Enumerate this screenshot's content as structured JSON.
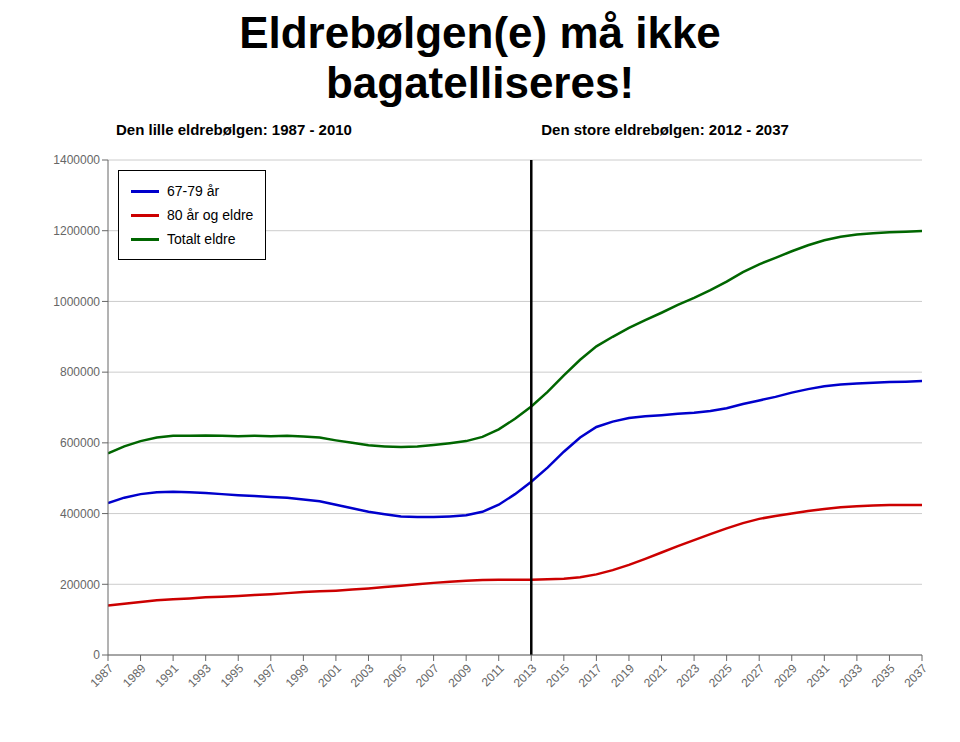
{
  "chart_data": {
    "type": "line",
    "title": "Eldrebølgen(e) må ikke\nbagatelliseres!",
    "subtitle": [
      "Den lille eldrebølgen: 1987 - 2010",
      "Den store eldrebølgen: 2012 - 2037"
    ],
    "x": [
      1987,
      1988,
      1989,
      1990,
      1991,
      1992,
      1993,
      1994,
      1995,
      1996,
      1997,
      1998,
      1999,
      2000,
      2001,
      2002,
      2003,
      2004,
      2005,
      2006,
      2007,
      2008,
      2009,
      2010,
      2011,
      2012,
      2013,
      2014,
      2015,
      2016,
      2017,
      2018,
      2019,
      2020,
      2021,
      2022,
      2023,
      2024,
      2025,
      2026,
      2027,
      2028,
      2029,
      2030,
      2031,
      2032,
      2033,
      2034,
      2035,
      2036,
      2037
    ],
    "series": [
      {
        "name": "67-79 år",
        "color": "#0000cc",
        "values": [
          430000,
          445000,
          455000,
          460000,
          462000,
          460000,
          458000,
          455000,
          452000,
          450000,
          447000,
          445000,
          440000,
          435000,
          425000,
          415000,
          405000,
          398000,
          392000,
          390000,
          390000,
          392000,
          395000,
          405000,
          425000,
          455000,
          490000,
          530000,
          575000,
          615000,
          645000,
          660000,
          670000,
          675000,
          678000,
          682000,
          685000,
          690000,
          698000,
          710000,
          720000,
          730000,
          742000,
          752000,
          760000,
          765000,
          768000,
          770000,
          772000,
          773000,
          775000
        ]
      },
      {
        "name": "80 år og eldre",
        "color": "#cc0000",
        "values": [
          140000,
          145000,
          150000,
          155000,
          158000,
          160000,
          163000,
          165000,
          167000,
          170000,
          172000,
          175000,
          178000,
          180000,
          182000,
          185000,
          188000,
          192000,
          196000,
          200000,
          204000,
          207000,
          210000,
          212000,
          213000,
          213000,
          213000,
          214000,
          216000,
          220000,
          228000,
          240000,
          255000,
          272000,
          290000,
          308000,
          325000,
          342000,
          358000,
          373000,
          385000,
          393000,
          400000,
          407000,
          413000,
          418000,
          421000,
          423000,
          424000,
          424000,
          424000
        ]
      },
      {
        "name": "Totalt eldre",
        "color": "#006600",
        "values": [
          570000,
          590000,
          605000,
          615000,
          620000,
          620000,
          621000,
          620000,
          619000,
          620000,
          619000,
          620000,
          618000,
          615000,
          607000,
          600000,
          593000,
          590000,
          588000,
          590000,
          594000,
          599000,
          605000,
          617000,
          638000,
          668000,
          703000,
          744000,
          791000,
          835000,
          873000,
          900000,
          925000,
          947000,
          968000,
          990000,
          1010000,
          1032000,
          1056000,
          1083000,
          1105000,
          1123000,
          1142000,
          1159000,
          1173000,
          1183000,
          1189000,
          1193000,
          1196000,
          1197000,
          1199000
        ]
      }
    ],
    "xlim": [
      1987,
      2037
    ],
    "xticks": [
      1987,
      1989,
      1991,
      1993,
      1995,
      1997,
      1999,
      2001,
      2003,
      2005,
      2007,
      2009,
      2011,
      2013,
      2015,
      2017,
      2019,
      2021,
      2023,
      2025,
      2027,
      2029,
      2031,
      2033,
      2035,
      2037
    ],
    "ylim": [
      0,
      1400000
    ],
    "yticks": [
      0,
      200000,
      400000,
      600000,
      800000,
      1000000,
      1200000,
      1400000
    ],
    "grid": true,
    "legend": "upper left",
    "vline": {
      "x": 2013,
      "color": "#000000"
    }
  }
}
